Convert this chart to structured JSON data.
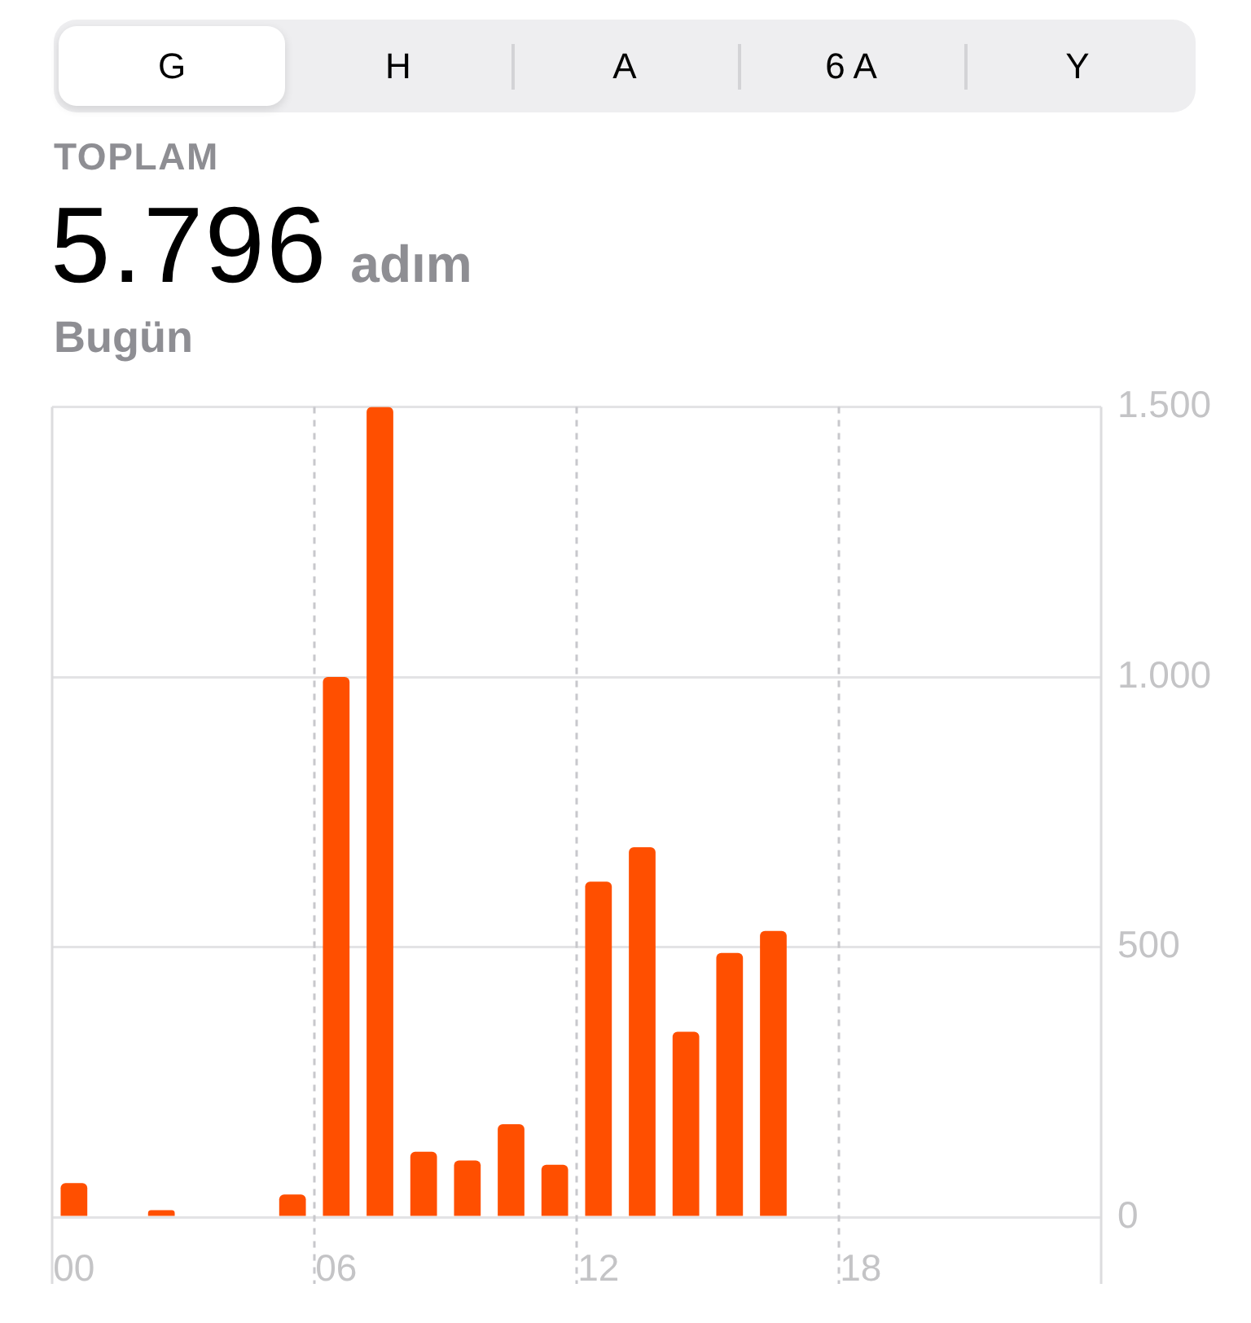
{
  "chart_data": {
    "type": "bar",
    "title": "5.796 adım",
    "subtitle": "Bugün",
    "annotations": [
      "G",
      "H",
      "A",
      "6 A",
      "Y",
      "TOPLAM"
    ],
    "categories": [
      "00",
      null,
      null,
      null,
      null,
      null,
      "06",
      null,
      null,
      null,
      null,
      null,
      "12",
      null,
      null,
      null,
      null,
      null,
      "18",
      null,
      null,
      null,
      null,
      null
    ],
    "values": [
      63,
      null,
      13,
      null,
      null,
      42,
      1000,
      1500,
      121,
      105,
      172,
      97,
      621,
      685,
      343,
      489,
      530,
      null,
      null,
      null,
      null,
      null,
      null,
      null
    ],
    "color": "#ff4f00",
    "ylim": [
      0,
      1500
    ],
    "yticks": [
      0,
      500,
      {
        "value": 1000,
        "label": "1.000"
      },
      {
        "value": 1500,
        "label": "1.500"
      }
    ],
    "grid": true
  }
}
